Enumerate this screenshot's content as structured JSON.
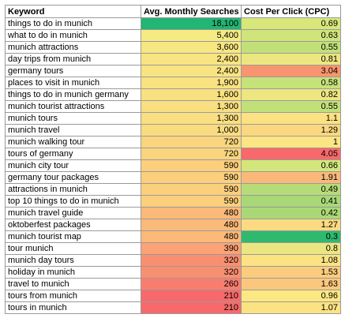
{
  "headers": [
    "Keyword",
    "Avg. Monthly Searches",
    "Cost Per Click (CPC)"
  ],
  "rows": [
    {
      "keyword": "things to do in munich",
      "searches": "18,100",
      "cpc": "0.69",
      "search_color": "#22b573",
      "cpc_color": "#d7e77a"
    },
    {
      "keyword": "what to do in munich",
      "searches": "5,400",
      "cpc": "0.63",
      "search_color": "#f6ea84",
      "cpc_color": "#cfe57a"
    },
    {
      "keyword": "munich attractions",
      "searches": "3,600",
      "cpc": "0.55",
      "search_color": "#f7e783",
      "cpc_color": "#c2e07a"
    },
    {
      "keyword": "day trips from munich",
      "searches": "2,400",
      "cpc": "0.81",
      "search_color": "#f8e482",
      "cpc_color": "#ece681"
    },
    {
      "keyword": "germany tours",
      "searches": "2,400",
      "cpc": "3.04",
      "search_color": "#f8e482",
      "cpc_color": "#f8946f"
    },
    {
      "keyword": "places to visit in munich",
      "searches": "1,900",
      "cpc": "0.58",
      "search_color": "#f8e282",
      "cpc_color": "#c6e27a"
    },
    {
      "keyword": "things to do in munich germany",
      "searches": "1,600",
      "cpc": "0.82",
      "search_color": "#f9e181",
      "cpc_color": "#ede681"
    },
    {
      "keyword": "munich tourist attractions",
      "searches": "1,300",
      "cpc": "0.55",
      "search_color": "#f9df81",
      "cpc_color": "#c2e07a"
    },
    {
      "keyword": "munich tours",
      "searches": "1,300",
      "cpc": "1.1",
      "search_color": "#f9df81",
      "cpc_color": "#fbe282"
    },
    {
      "keyword": "munich travel",
      "searches": "1,000",
      "cpc": "1.29",
      "search_color": "#f9dc80",
      "cpc_color": "#fbd880"
    },
    {
      "keyword": "munich walking tour",
      "searches": "720",
      "cpc": "1",
      "search_color": "#fad57e",
      "cpc_color": "#fbe683"
    },
    {
      "keyword": "tours of germany",
      "searches": "720",
      "cpc": "4.05",
      "search_color": "#fad57e",
      "cpc_color": "#f8696b"
    },
    {
      "keyword": "munich city tour",
      "searches": "590",
      "cpc": "0.66",
      "search_color": "#fbcf7c",
      "cpc_color": "#d2e67a"
    },
    {
      "keyword": "germany tour packages",
      "searches": "590",
      "cpc": "1.91",
      "search_color": "#fbcf7c",
      "cpc_color": "#fab97a"
    },
    {
      "keyword": "attractions in munich",
      "searches": "590",
      "cpc": "0.49",
      "search_color": "#fbcf7c",
      "cpc_color": "#b6dc78"
    },
    {
      "keyword": "top 10 things to do in munich",
      "searches": "590",
      "cpc": "0.41",
      "search_color": "#fbcf7c",
      "cpc_color": "#a8d877"
    },
    {
      "keyword": "munich travel guide",
      "searches": "480",
      "cpc": "0.42",
      "search_color": "#fbb97a",
      "cpc_color": "#aad877"
    },
    {
      "keyword": "oktoberfest packages",
      "searches": "480",
      "cpc": "1.27",
      "search_color": "#fbb97a",
      "cpc_color": "#fbda81"
    },
    {
      "keyword": "munich tourist map",
      "searches": "480",
      "cpc": "0.3",
      "search_color": "#fbb97a",
      "cpc_color": "#2eb96f"
    },
    {
      "keyword": "tour munich",
      "searches": "390",
      "cpc": "0.8",
      "search_color": "#fba276",
      "cpc_color": "#ebe681"
    },
    {
      "keyword": "munich day tours",
      "searches": "320",
      "cpc": "1.08",
      "search_color": "#f98f71",
      "cpc_color": "#fbe383"
    },
    {
      "keyword": "holiday in munich",
      "searches": "320",
      "cpc": "1.53",
      "search_color": "#f98f71",
      "cpc_color": "#fbcc7e"
    },
    {
      "keyword": "travel to munich",
      "searches": "260",
      "cpc": "1.63",
      "search_color": "#f97d6e",
      "cpc_color": "#fbc77d"
    },
    {
      "keyword": "tours from munich",
      "searches": "210",
      "cpc": "0.96",
      "search_color": "#f8696b",
      "cpc_color": "#fbe883"
    },
    {
      "keyword": "tours in munich",
      "searches": "210",
      "cpc": "1.07",
      "search_color": "#f8696b",
      "cpc_color": "#fbe383"
    }
  ]
}
